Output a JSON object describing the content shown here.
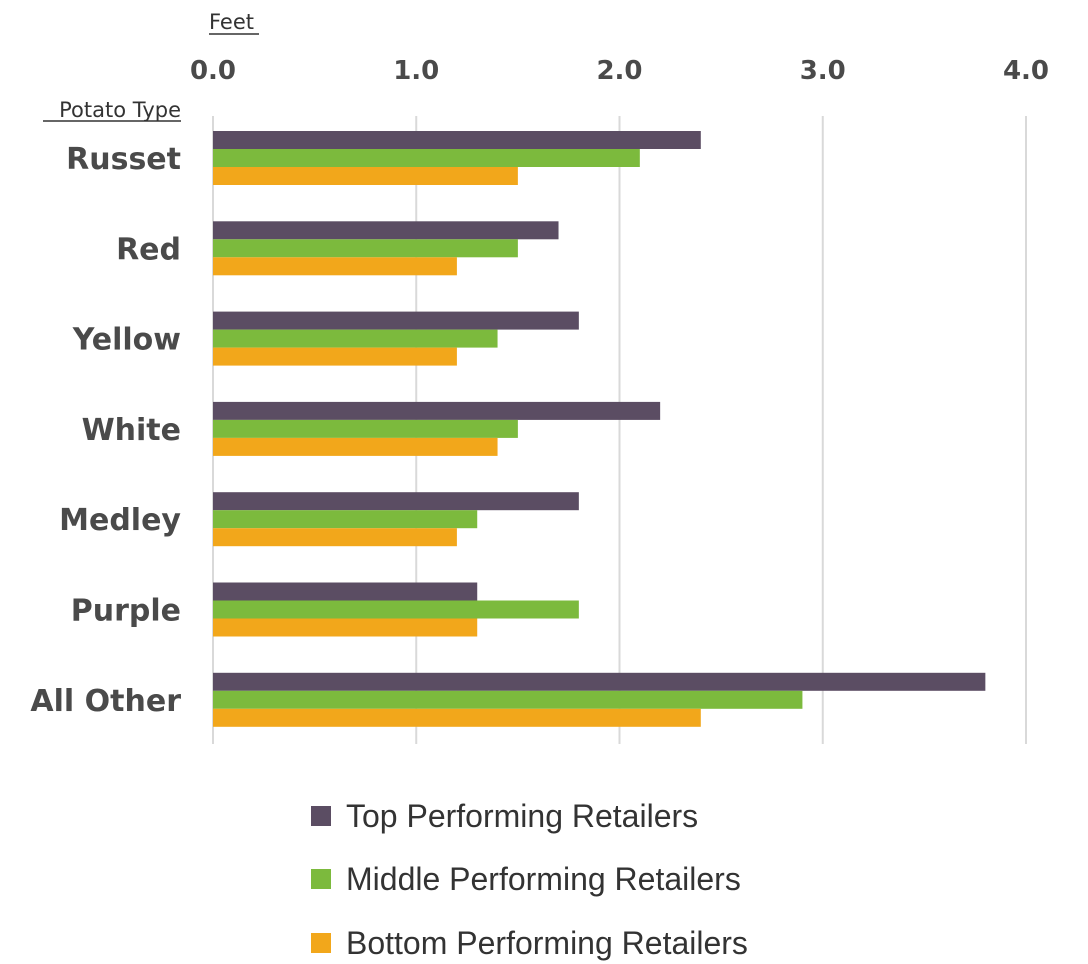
{
  "chart_data": {
    "type": "bar",
    "orientation": "horizontal",
    "categories": [
      "Russet",
      "Red",
      "Yellow",
      "White",
      "Medley",
      "Purple",
      "All Other"
    ],
    "series": [
      {
        "name": "Top Performing Retailers",
        "color": "#5b4d63",
        "values": [
          2.4,
          1.7,
          1.8,
          2.2,
          1.8,
          1.3,
          3.8
        ]
      },
      {
        "name": "Middle Performing Retailers",
        "color": "#7cba3d",
        "values": [
          2.1,
          1.5,
          1.4,
          1.5,
          1.3,
          1.8,
          2.9
        ]
      },
      {
        "name": "Bottom Performing Retailers",
        "color": "#f2a71b",
        "values": [
          1.5,
          1.2,
          1.2,
          1.4,
          1.2,
          1.3,
          2.4
        ]
      }
    ],
    "xlabel": "Feet",
    "ylabel": "Potato Type",
    "xlim": [
      0,
      4
    ],
    "xticks": [
      "0.0",
      "1.0",
      "2.0",
      "3.0",
      "4.0"
    ],
    "grid": true,
    "legend_position": "bottom"
  }
}
